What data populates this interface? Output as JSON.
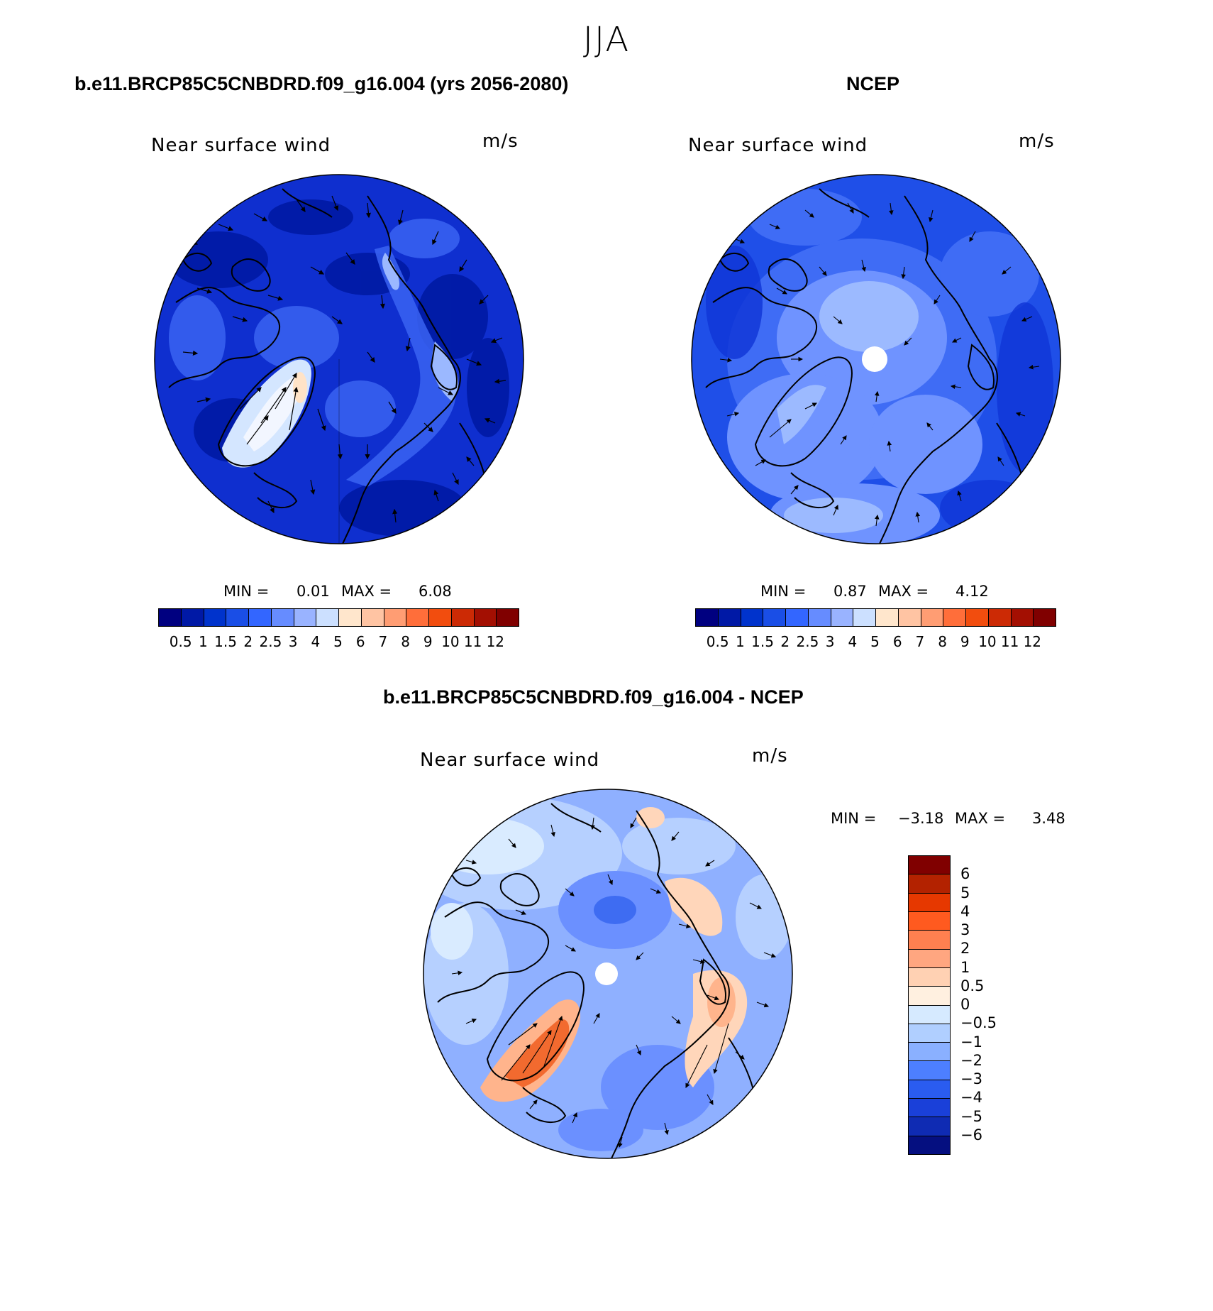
{
  "figure_title": "JJA",
  "colors": {
    "abs_scale": [
      "#000080",
      "#0019a6",
      "#0033cc",
      "#1a4ee6",
      "#3366ff",
      "#668cff",
      "#99b3ff",
      "#cce0ff",
      "#ffe6cc",
      "#ffc4a3",
      "#ff9d73",
      "#ff6e3a",
      "#f24d0e",
      "#cc2a05",
      "#a30f02",
      "#800000"
    ],
    "diff_scale": [
      "#800000",
      "#b32200",
      "#e63800",
      "#ff5a1f",
      "#ff8050",
      "#ffa680",
      "#ffd1b3",
      "#fff0e0",
      "#d6eaff",
      "#b0cfff",
      "#8ab0ff",
      "#4d7fff",
      "#2a5cf0",
      "#1a40d9",
      "#0f2bb3",
      "#050f80"
    ]
  },
  "panels": [
    {
      "id": "model",
      "title": "b.e11.BRCP85C5CNBDRD.f09_g16.004 (yrs 2056-2080)",
      "variable": "Near surface wind",
      "units": "m/s",
      "min_label": "MIN =",
      "min_value": "0.01",
      "max_label": "MAX =",
      "max_value": "6.08",
      "colorbar_ticks": [
        "0.5",
        "1",
        "1.5",
        "2",
        "2.5",
        "3",
        "4",
        "5",
        "6",
        "7",
        "8",
        "9",
        "10",
        "11",
        "12"
      ]
    },
    {
      "id": "obs",
      "title": "NCEP",
      "variable": "Near surface wind",
      "units": "m/s",
      "min_label": "MIN =",
      "min_value": "0.87",
      "max_label": "MAX =",
      "max_value": "4.12",
      "colorbar_ticks": [
        "0.5",
        "1",
        "1.5",
        "2",
        "2.5",
        "3",
        "4",
        "5",
        "6",
        "7",
        "8",
        "9",
        "10",
        "11",
        "12"
      ]
    },
    {
      "id": "diff",
      "title": "b.e11.BRCP85C5CNBDRD.f09_g16.004 - NCEP",
      "variable": "Near surface wind",
      "units": "m/s",
      "min_label": "MIN =",
      "min_value": "−3.18",
      "max_label": "MAX =",
      "max_value": "3.48",
      "colorbar_ticks": [
        "6",
        "5",
        "4",
        "3",
        "2",
        "1",
        "0.5",
        "0",
        "−0.5",
        "−1",
        "−2",
        "−3",
        "−4",
        "−5",
        "−6"
      ]
    }
  ]
}
